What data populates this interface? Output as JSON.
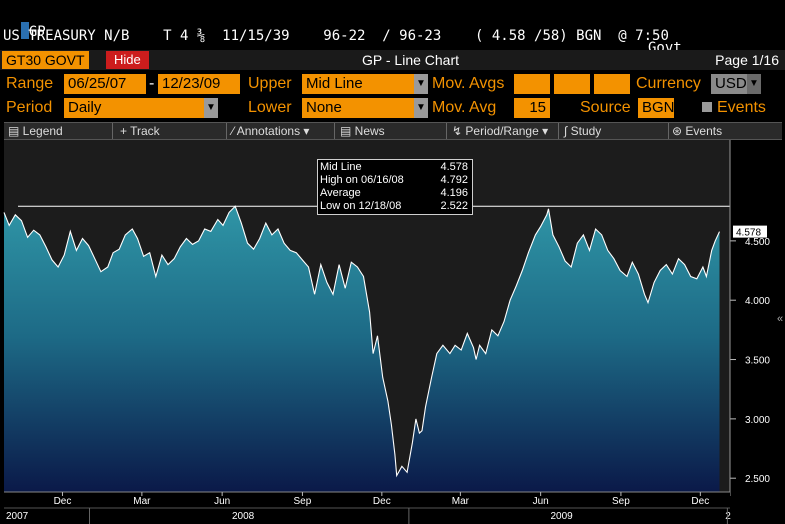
{
  "header": {
    "line1_left": "GP",
    "line1_govt": "Govt",
    "line1_func": "GP",
    "line2": "US TREASURY N/B    T 4 ⅜  11/15/39    96-22  / 96-23    ( 4.58 /58) BGN  @ 7:50"
  },
  "amber_bar": {
    "ticker": "GT30 GOVT",
    "hide_label": "Hide",
    "title": "GP - Line Chart",
    "page": "Page 1/16"
  },
  "params": {
    "range_label": "Range",
    "range_start": "06/25/07",
    "range_dash": "-",
    "range_end": "12/23/09",
    "upper_label": "Upper",
    "upper_value": "Mid Line",
    "mov_avgs_label": "Mov. Avgs",
    "currency_label": "Currency",
    "currency_value": "USD",
    "period_label": "Period",
    "period_value": "Daily",
    "lower_label": "Lower",
    "lower_value": "None",
    "mov_avg_label": "Mov. Avg",
    "mov_avg_value": "15",
    "source_label": "Source",
    "source_value": "BGN",
    "events_label": "Events"
  },
  "toolbar": {
    "legend": "Legend",
    "track": "Track",
    "annotations": "Annotations",
    "news": "News",
    "period_range": "Period/Range",
    "study": "Study",
    "events": "Events"
  },
  "legend_box": {
    "rows": [
      {
        "label": "Mid Line",
        "value": "4.578"
      },
      {
        "label": "High on  06/16/08",
        "value": "4.792"
      },
      {
        "label": "Average",
        "value": "4.196"
      },
      {
        "label": "Low on  12/18/08",
        "value": "2.522"
      }
    ]
  },
  "colors": {
    "amber": "#f39200",
    "area_top": "#2b8a9c",
    "area_bottom": "#0b1a4f",
    "line": "#ffffff",
    "hide_red": "#cc1d1d"
  },
  "chart_data": {
    "type": "area",
    "title": "",
    "xlabel": "",
    "ylabel": "",
    "ylim": [
      2.35,
      5.35
    ],
    "y_ticks": [
      "2.500",
      "3.000",
      "3.500",
      "4.000",
      "4.500"
    ],
    "last_value_label": "4.578",
    "high_line_value": 4.792,
    "x_tick_labels": [
      {
        "label": "Dec",
        "date": "2007-12-01"
      },
      {
        "label": "Mar",
        "date": "2008-03-01"
      },
      {
        "label": "Jun",
        "date": "2008-06-01"
      },
      {
        "label": "Sep",
        "date": "2008-09-01"
      },
      {
        "label": "Dec",
        "date": "2008-12-01"
      },
      {
        "label": "Mar",
        "date": "2009-03-01"
      },
      {
        "label": "Jun",
        "date": "2009-06-01"
      },
      {
        "label": "Sep",
        "date": "2009-09-01"
      },
      {
        "label": "Dec",
        "date": "2009-12-01"
      }
    ],
    "year_labels": [
      {
        "label": "2007",
        "date": "2007-10-10"
      },
      {
        "label": "2008",
        "date": "2008-06-25"
      },
      {
        "label": "2009",
        "date": "2009-06-25"
      },
      {
        "label": "2",
        "date": "2010-01-03"
      }
    ],
    "x_range": [
      "2007-09-25",
      "2010-01-04"
    ],
    "series": [
      {
        "values": [
          {
            "x": "2007-09-25",
            "y": 4.74
          },
          {
            "x": "2007-10-01",
            "y": 4.63
          },
          {
            "x": "2007-10-08",
            "y": 4.72
          },
          {
            "x": "2007-10-15",
            "y": 4.67
          },
          {
            "x": "2007-10-22",
            "y": 4.53
          },
          {
            "x": "2007-10-29",
            "y": 4.59
          },
          {
            "x": "2007-11-05",
            "y": 4.55
          },
          {
            "x": "2007-11-12",
            "y": 4.45
          },
          {
            "x": "2007-11-19",
            "y": 4.34
          },
          {
            "x": "2007-11-26",
            "y": 4.28
          },
          {
            "x": "2007-12-03",
            "y": 4.38
          },
          {
            "x": "2007-12-10",
            "y": 4.58
          },
          {
            "x": "2007-12-17",
            "y": 4.42
          },
          {
            "x": "2007-12-24",
            "y": 4.52
          },
          {
            "x": "2007-12-31",
            "y": 4.46
          },
          {
            "x": "2008-01-07",
            "y": 4.35
          },
          {
            "x": "2008-01-14",
            "y": 4.24
          },
          {
            "x": "2008-01-22",
            "y": 4.28
          },
          {
            "x": "2008-01-28",
            "y": 4.4
          },
          {
            "x": "2008-02-04",
            "y": 4.43
          },
          {
            "x": "2008-02-11",
            "y": 4.55
          },
          {
            "x": "2008-02-19",
            "y": 4.6
          },
          {
            "x": "2008-02-25",
            "y": 4.52
          },
          {
            "x": "2008-03-03",
            "y": 4.37
          },
          {
            "x": "2008-03-10",
            "y": 4.4
          },
          {
            "x": "2008-03-17",
            "y": 4.2
          },
          {
            "x": "2008-03-24",
            "y": 4.38
          },
          {
            "x": "2008-03-31",
            "y": 4.3
          },
          {
            "x": "2008-04-07",
            "y": 4.35
          },
          {
            "x": "2008-04-14",
            "y": 4.45
          },
          {
            "x": "2008-04-21",
            "y": 4.52
          },
          {
            "x": "2008-04-28",
            "y": 4.47
          },
          {
            "x": "2008-05-05",
            "y": 4.5
          },
          {
            "x": "2008-05-12",
            "y": 4.6
          },
          {
            "x": "2008-05-19",
            "y": 4.58
          },
          {
            "x": "2008-05-27",
            "y": 4.68
          },
          {
            "x": "2008-06-02",
            "y": 4.63
          },
          {
            "x": "2008-06-09",
            "y": 4.74
          },
          {
            "x": "2008-06-16",
            "y": 4.792
          },
          {
            "x": "2008-06-23",
            "y": 4.65
          },
          {
            "x": "2008-06-30",
            "y": 4.48
          },
          {
            "x": "2008-07-07",
            "y": 4.43
          },
          {
            "x": "2008-07-14",
            "y": 4.52
          },
          {
            "x": "2008-07-21",
            "y": 4.65
          },
          {
            "x": "2008-07-28",
            "y": 4.55
          },
          {
            "x": "2008-08-04",
            "y": 4.6
          },
          {
            "x": "2008-08-11",
            "y": 4.48
          },
          {
            "x": "2008-08-18",
            "y": 4.42
          },
          {
            "x": "2008-08-25",
            "y": 4.4
          },
          {
            "x": "2008-09-02",
            "y": 4.33
          },
          {
            "x": "2008-09-08",
            "y": 4.28
          },
          {
            "x": "2008-09-15",
            "y": 4.05
          },
          {
            "x": "2008-09-22",
            "y": 4.3
          },
          {
            "x": "2008-09-29",
            "y": 4.15
          },
          {
            "x": "2008-10-06",
            "y": 4.05
          },
          {
            "x": "2008-10-13",
            "y": 4.3
          },
          {
            "x": "2008-10-20",
            "y": 4.1
          },
          {
            "x": "2008-10-27",
            "y": 4.32
          },
          {
            "x": "2008-11-03",
            "y": 4.28
          },
          {
            "x": "2008-11-10",
            "y": 4.2
          },
          {
            "x": "2008-11-17",
            "y": 3.9
          },
          {
            "x": "2008-11-21",
            "y": 3.55
          },
          {
            "x": "2008-11-26",
            "y": 3.7
          },
          {
            "x": "2008-12-02",
            "y": 3.35
          },
          {
            "x": "2008-12-08",
            "y": 3.15
          },
          {
            "x": "2008-12-12",
            "y": 2.95
          },
          {
            "x": "2008-12-16",
            "y": 2.7
          },
          {
            "x": "2008-12-18",
            "y": 2.522
          },
          {
            "x": "2008-12-24",
            "y": 2.6
          },
          {
            "x": "2008-12-30",
            "y": 2.55
          },
          {
            "x": "2009-01-05",
            "y": 2.8
          },
          {
            "x": "2009-01-09",
            "y": 3.0
          },
          {
            "x": "2009-01-13",
            "y": 2.88
          },
          {
            "x": "2009-01-16",
            "y": 2.9
          },
          {
            "x": "2009-01-20",
            "y": 3.1
          },
          {
            "x": "2009-01-27",
            "y": 3.35
          },
          {
            "x": "2009-02-02",
            "y": 3.55
          },
          {
            "x": "2009-02-09",
            "y": 3.62
          },
          {
            "x": "2009-02-17",
            "y": 3.55
          },
          {
            "x": "2009-02-23",
            "y": 3.62
          },
          {
            "x": "2009-03-02",
            "y": 3.58
          },
          {
            "x": "2009-03-09",
            "y": 3.72
          },
          {
            "x": "2009-03-16",
            "y": 3.6
          },
          {
            "x": "2009-03-19",
            "y": 3.5
          },
          {
            "x": "2009-03-23",
            "y": 3.62
          },
          {
            "x": "2009-03-30",
            "y": 3.55
          },
          {
            "x": "2009-04-06",
            "y": 3.75
          },
          {
            "x": "2009-04-13",
            "y": 3.7
          },
          {
            "x": "2009-04-20",
            "y": 3.82
          },
          {
            "x": "2009-04-27",
            "y": 4.0
          },
          {
            "x": "2009-05-04",
            "y": 4.12
          },
          {
            "x": "2009-05-11",
            "y": 4.25
          },
          {
            "x": "2009-05-18",
            "y": 4.4
          },
          {
            "x": "2009-05-26",
            "y": 4.55
          },
          {
            "x": "2009-06-01",
            "y": 4.62
          },
          {
            "x": "2009-06-08",
            "y": 4.72
          },
          {
            "x": "2009-06-10",
            "y": 4.77
          },
          {
            "x": "2009-06-15",
            "y": 4.55
          },
          {
            "x": "2009-06-22",
            "y": 4.45
          },
          {
            "x": "2009-06-29",
            "y": 4.33
          },
          {
            "x": "2009-07-06",
            "y": 4.28
          },
          {
            "x": "2009-07-13",
            "y": 4.48
          },
          {
            "x": "2009-07-20",
            "y": 4.55
          },
          {
            "x": "2009-07-27",
            "y": 4.42
          },
          {
            "x": "2009-08-03",
            "y": 4.6
          },
          {
            "x": "2009-08-10",
            "y": 4.55
          },
          {
            "x": "2009-08-17",
            "y": 4.42
          },
          {
            "x": "2009-08-24",
            "y": 4.35
          },
          {
            "x": "2009-08-31",
            "y": 4.25
          },
          {
            "x": "2009-09-08",
            "y": 4.2
          },
          {
            "x": "2009-09-14",
            "y": 4.32
          },
          {
            "x": "2009-09-21",
            "y": 4.22
          },
          {
            "x": "2009-09-28",
            "y": 4.05
          },
          {
            "x": "2009-10-02",
            "y": 3.98
          },
          {
            "x": "2009-10-09",
            "y": 4.15
          },
          {
            "x": "2009-10-16",
            "y": 4.25
          },
          {
            "x": "2009-10-23",
            "y": 4.3
          },
          {
            "x": "2009-10-30",
            "y": 4.22
          },
          {
            "x": "2009-11-06",
            "y": 4.35
          },
          {
            "x": "2009-11-13",
            "y": 4.3
          },
          {
            "x": "2009-11-20",
            "y": 4.2
          },
          {
            "x": "2009-11-27",
            "y": 4.18
          },
          {
            "x": "2009-12-04",
            "y": 4.28
          },
          {
            "x": "2009-12-08",
            "y": 4.2
          },
          {
            "x": "2009-12-14",
            "y": 4.42
          },
          {
            "x": "2009-12-18",
            "y": 4.5
          },
          {
            "x": "2009-12-23",
            "y": 4.578
          }
        ]
      }
    ]
  }
}
